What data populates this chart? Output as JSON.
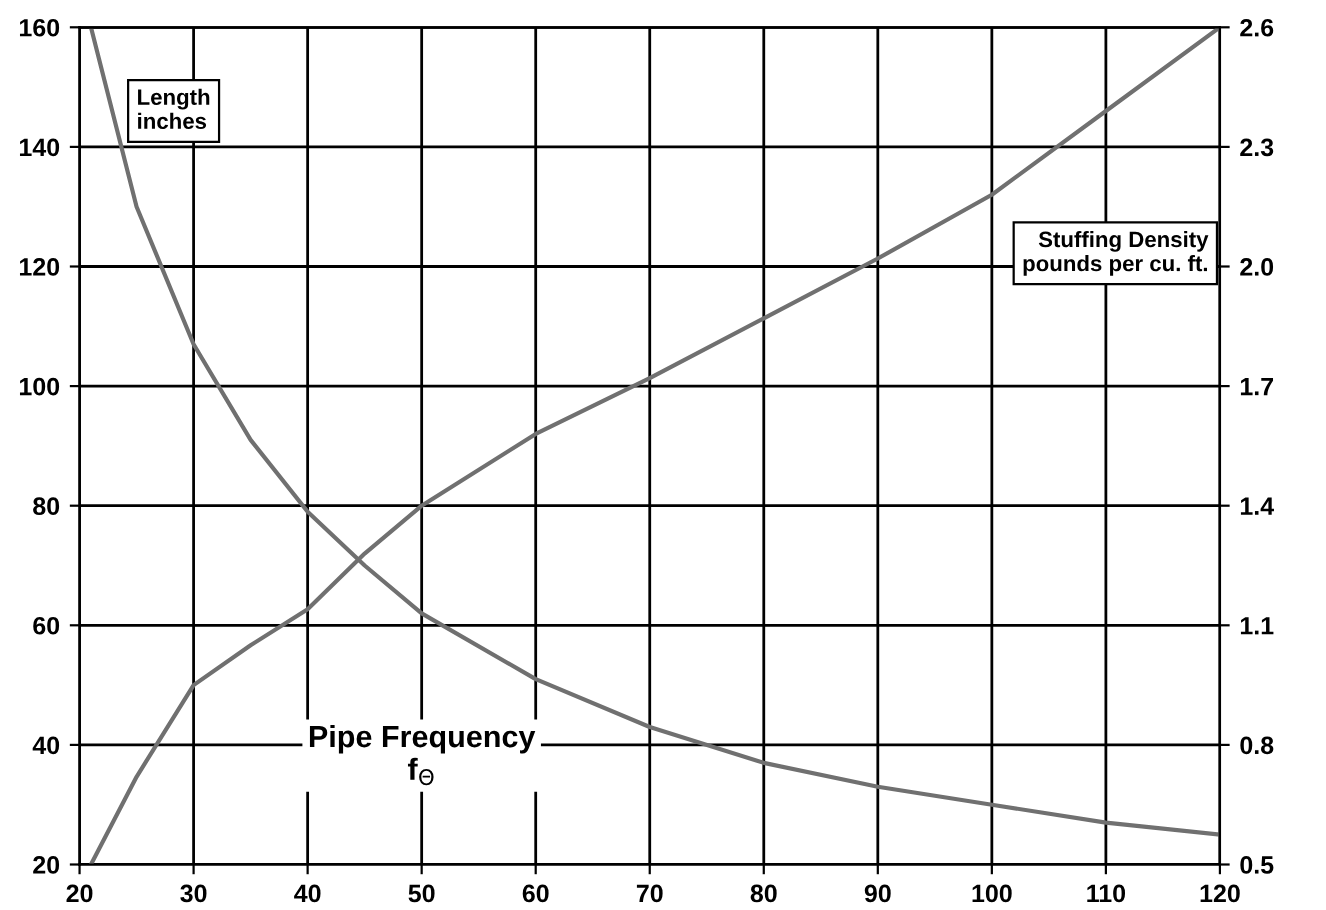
{
  "chart_data": {
    "type": "line",
    "xlabel": "Pipe Frequency\nf$_{Θ}$",
    "xlim": [
      20,
      120
    ],
    "xticks": [
      20,
      30,
      40,
      50,
      60,
      70,
      80,
      90,
      100,
      110,
      120
    ],
    "ylim": [
      20,
      160
    ],
    "yticks": [
      20,
      40,
      60,
      80,
      100,
      120,
      140,
      160
    ],
    "y2lim": [
      0.5,
      2.6
    ],
    "y2ticks": [
      0.5,
      0.8,
      1.1,
      1.4,
      1.7,
      {
        "value": 2,
        "label": "2.0"
      },
      2.3,
      2.6
    ],
    "grid": true,
    "legend": false,
    "series": [
      {
        "name": "Length\ninches",
        "color": "#707070",
        "x": [
          21,
          25,
          30,
          35,
          40,
          45,
          50,
          60,
          70,
          80,
          90,
          100,
          110,
          120
        ],
        "values": [
          160,
          130,
          107,
          91,
          79,
          70,
          62,
          51,
          43,
          37,
          33,
          30,
          27,
          25
        ]
      },
      {
        "name": "Stuffing Density\npounds per cu. ft.",
        "color": "#707070",
        "axis": "y2",
        "x": [
          21,
          25,
          30,
          35,
          40,
          45,
          50,
          60,
          70,
          80,
          90,
          100,
          110,
          120
        ],
        "values": [
          0.5,
          0.72,
          0.95,
          1.05,
          1.14,
          1.28,
          1.4,
          1.58,
          1.72,
          1.87,
          2.02,
          2.18,
          2.39,
          2.6
        ]
      }
    ]
  }
}
